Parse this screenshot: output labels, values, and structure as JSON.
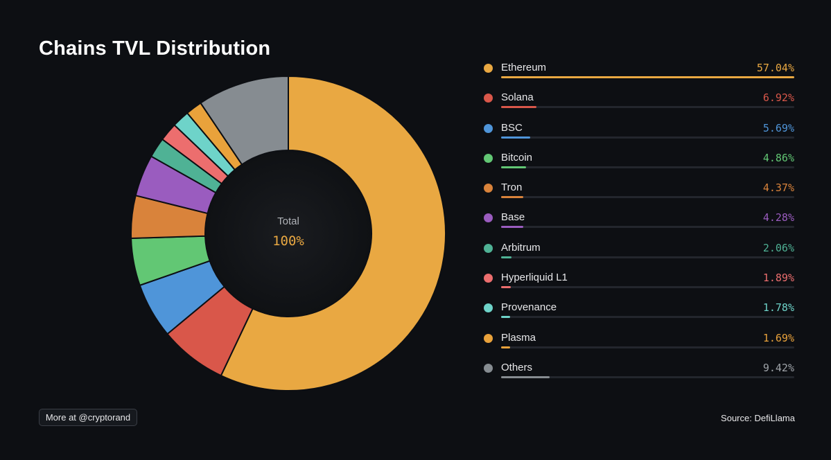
{
  "chart_data": {
    "type": "pie",
    "title": "Chains TVL Distribution",
    "center_label": "Total",
    "center_value": "100%",
    "legend_position": "right",
    "slices": [
      {
        "name": "Ethereum",
        "value": 57.04,
        "label": "57.04%",
        "color": "#e9a842"
      },
      {
        "name": "Solana",
        "value": 6.92,
        "label": "6.92%",
        "color": "#d9574a"
      },
      {
        "name": "BSC",
        "value": 5.69,
        "label": "5.69%",
        "color": "#4f95d9"
      },
      {
        "name": "Bitcoin",
        "value": 4.86,
        "label": "4.86%",
        "color": "#62c774"
      },
      {
        "name": "Tron",
        "value": 4.37,
        "label": "4.37%",
        "color": "#d9833b"
      },
      {
        "name": "Base",
        "value": 4.28,
        "label": "4.28%",
        "color": "#9a5cbf"
      },
      {
        "name": "Arbitrum",
        "value": 2.06,
        "label": "2.06%",
        "color": "#4fb295"
      },
      {
        "name": "Hyperliquid L1",
        "value": 1.89,
        "label": "1.89%",
        "color": "#ec6e6e"
      },
      {
        "name": "Provenance",
        "value": 1.78,
        "label": "1.78%",
        "color": "#6ed3c9"
      },
      {
        "name": "Plasma",
        "value": 1.69,
        "label": "1.69%",
        "color": "#e9a23b"
      },
      {
        "name": "Others",
        "value": 9.42,
        "label": "9.42%",
        "color": "#868c91"
      }
    ]
  },
  "footer": {
    "more_label": "More at @cryptorand",
    "source_label": "Source: DefiLlama"
  },
  "colors": {
    "background": "#0d0f13",
    "center_fill": "#14161a",
    "text_muted": "#b0b3b8"
  }
}
